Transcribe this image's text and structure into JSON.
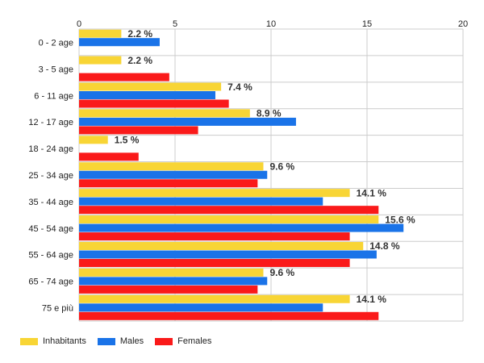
{
  "chart_data": {
    "type": "bar",
    "orientation": "horizontal",
    "categories": [
      "0 - 2 age",
      "3 - 5 age",
      "6 - 11 age",
      "12 - 17 age",
      "18 - 24 age",
      "25 - 34 age",
      "35 - 44 age",
      "45 - 54 age",
      "55 - 64 age",
      "65 - 74 age",
      "75 e più"
    ],
    "series": [
      {
        "name": "Inhabitants",
        "color": "#f8d535",
        "values": [
          2.2,
          2.2,
          7.4,
          8.9,
          1.5,
          9.6,
          14.1,
          15.6,
          14.8,
          9.6,
          14.1
        ]
      },
      {
        "name": "Males",
        "color": "#1a73e8",
        "values": [
          4.2,
          null,
          7.1,
          11.3,
          null,
          9.8,
          12.7,
          16.9,
          15.5,
          9.8,
          12.7
        ]
      },
      {
        "name": "Females",
        "color": "#fa1a1a",
        "values": [
          null,
          4.7,
          7.8,
          6.2,
          3.1,
          9.3,
          15.6,
          14.1,
          14.1,
          9.3,
          15.6
        ]
      }
    ],
    "data_labels": [
      "2.2 %",
      "2.2 %",
      "7.4 %",
      "8.9 %",
      "1.5 %",
      "9.6 %",
      "14.1 %",
      "15.6 %",
      "14.8 %",
      "9.6 %",
      "14.1 %"
    ],
    "x_ticks": [
      "0",
      "5",
      "10",
      "15",
      "20"
    ],
    "xlim": [
      0,
      20
    ],
    "x_axis_position": "top",
    "grid": true,
    "legend_position": "bottom-left"
  }
}
